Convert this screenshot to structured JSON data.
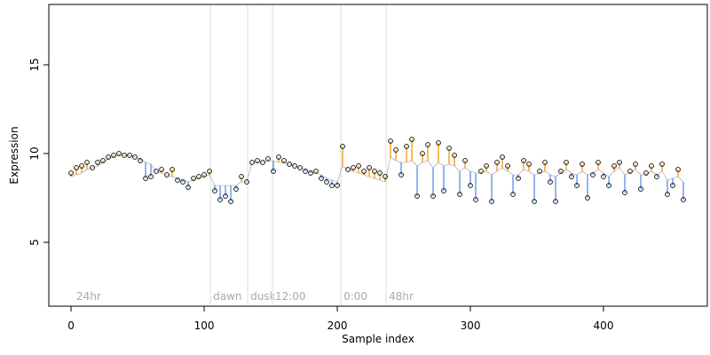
{
  "chart_data": {
    "type": "scatter",
    "x_label": "Sample index",
    "y_label": "Expression",
    "xlim": [
      -16.7,
      478
    ],
    "ylim": [
      1.4,
      18.4
    ],
    "xticks": [
      0,
      100,
      200,
      300,
      400
    ],
    "yticks": [
      5,
      10,
      15
    ],
    "point_color": "#000000",
    "above_color": "#f5a623",
    "below_color": "#6f9ee8",
    "marker_line_color": "#dddddd",
    "grid": false,
    "x": [
      0,
      4,
      8,
      12,
      16,
      20,
      24,
      28,
      32,
      36,
      40,
      44,
      48,
      52,
      56,
      60,
      64,
      68,
      72,
      76,
      80,
      84,
      88,
      92,
      96,
      100,
      104,
      108,
      112,
      116,
      120,
      124,
      128,
      132,
      136,
      140,
      144,
      148,
      152,
      156,
      160,
      164,
      168,
      172,
      176,
      180,
      184,
      188,
      192,
      196,
      200,
      204,
      208,
      212,
      216,
      220,
      224,
      228,
      232,
      236,
      240,
      244,
      248,
      252,
      256,
      260,
      264,
      268,
      272,
      276,
      280,
      284,
      288,
      292,
      296,
      300,
      304,
      308,
      312,
      316,
      320,
      324,
      328,
      332,
      336,
      340,
      344,
      348,
      352,
      356,
      360,
      364,
      368,
      372,
      376,
      380,
      384,
      388,
      392,
      396,
      400,
      404,
      408,
      412,
      416,
      420,
      424,
      428,
      432,
      436,
      440,
      444,
      448,
      452,
      456,
      460
    ],
    "values": [
      8.9,
      9.2,
      9.3,
      9.5,
      9.2,
      9.5,
      9.6,
      9.8,
      9.9,
      10.0,
      9.9,
      9.9,
      9.8,
      9.6,
      8.6,
      8.7,
      9.0,
      9.1,
      8.8,
      9.1,
      8.5,
      8.4,
      8.1,
      8.6,
      8.7,
      8.8,
      9.0,
      7.9,
      7.4,
      7.6,
      7.3,
      8.0,
      8.7,
      8.4,
      9.5,
      9.6,
      9.5,
      9.7,
      9.0,
      9.8,
      9.6,
      9.4,
      9.3,
      9.2,
      9.0,
      8.9,
      9.0,
      8.6,
      8.4,
      8.2,
      8.2,
      10.4,
      9.1,
      9.2,
      9.3,
      9.0,
      9.2,
      9.0,
      8.9,
      8.7,
      10.7,
      10.2,
      8.8,
      10.4,
      10.8,
      7.6,
      10.0,
      10.5,
      7.6,
      10.6,
      7.9,
      10.3,
      9.9,
      7.7,
      9.6,
      8.2,
      7.4,
      9.0,
      9.3,
      7.3,
      9.5,
      9.8,
      9.3,
      7.7,
      8.6,
      9.6,
      9.4,
      7.3,
      9.0,
      9.5,
      8.4,
      7.3,
      9.0,
      9.5,
      8.7,
      8.2,
      9.4,
      7.5,
      8.8,
      9.5,
      8.7,
      8.2,
      9.3,
      9.5,
      7.8,
      9.0,
      9.4,
      8.0,
      8.9,
      9.3,
      8.7,
      9.4,
      7.7,
      8.2,
      9.1,
      7.4
    ],
    "fitted": [
      8.7,
      8.8,
      8.9,
      9.1,
      9.2,
      9.3,
      9.5,
      9.7,
      9.8,
      9.9,
      9.9,
      9.9,
      9.8,
      9.7,
      9.5,
      9.4,
      9.0,
      8.9,
      8.8,
      8.7,
      8.6,
      8.5,
      8.4,
      8.5,
      8.6,
      8.7,
      8.8,
      8.2,
      8.2,
      8.2,
      8.2,
      8.2,
      8.4,
      8.4,
      9.5,
      9.5,
      9.5,
      9.6,
      9.6,
      9.5,
      9.5,
      9.4,
      9.3,
      9.2,
      9.1,
      9.0,
      8.9,
      8.8,
      8.6,
      8.5,
      8.4,
      9.3,
      9.1,
      9.0,
      8.9,
      8.8,
      8.7,
      8.6,
      8.5,
      8.4,
      9.8,
      9.6,
      9.5,
      9.5,
      9.6,
      9.3,
      9.5,
      9.6,
      9.2,
      9.5,
      9.3,
      9.4,
      9.3,
      9.0,
      9.2,
      9.0,
      8.9,
      8.9,
      9.0,
      8.8,
      9.0,
      9.2,
      9.0,
      8.8,
      8.8,
      9.1,
      9.0,
      8.8,
      8.9,
      9.0,
      8.8,
      8.7,
      8.9,
      9.1,
      8.9,
      8.8,
      9.0,
      8.8,
      8.9,
      9.1,
      8.9,
      8.7,
      9.0,
      9.2,
      8.8,
      8.9,
      9.1,
      8.8,
      8.8,
      9.0,
      8.8,
      9.0,
      8.5,
      8.6,
      8.7,
      8.4
    ],
    "markers": [
      {
        "x": 2,
        "label": "24hr",
        "line": false
      },
      {
        "x": 104.7,
        "label": "dawn",
        "line": true
      },
      {
        "x": 132.7,
        "label": "dusk",
        "line": true
      },
      {
        "x": 151.3,
        "label": "12:00",
        "line": true
      },
      {
        "x": 202.7,
        "label": "0:00",
        "line": true
      },
      {
        "x": 236.7,
        "label": "48hr",
        "line": true
      }
    ]
  }
}
